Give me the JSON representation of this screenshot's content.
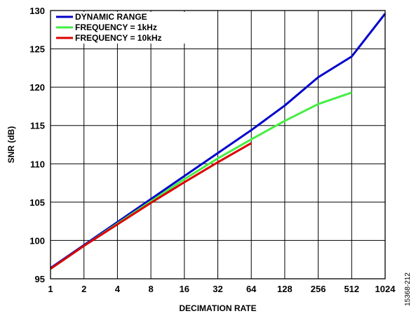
{
  "chart_data": {
    "type": "line",
    "xlabel": "DECIMATION RATE",
    "ylabel": "SNR (dB)",
    "x_scale": "log2",
    "x_ticks": [
      1,
      2,
      4,
      8,
      16,
      32,
      64,
      128,
      256,
      512,
      1024
    ],
    "x_tick_labels": [
      "1",
      "2",
      "4",
      "8",
      "16",
      "32",
      "64",
      "128",
      "256",
      "512",
      "1024"
    ],
    "ylim": [
      95,
      130
    ],
    "y_ticks": [
      95,
      100,
      105,
      110,
      115,
      120,
      125,
      130
    ],
    "y_tick_labels": [
      "95",
      "100",
      "105",
      "110",
      "115",
      "120",
      "125",
      "130"
    ],
    "grid": true,
    "legend_position": "top-left",
    "series": [
      {
        "name": "DYNAMIC RANGE",
        "color": "#0000cc",
        "x": [
          1,
          2,
          4,
          8,
          16,
          32,
          64,
          128,
          256,
          512,
          1024
        ],
        "y": [
          96.4,
          99.4,
          102.4,
          105.4,
          108.4,
          111.4,
          114.4,
          117.6,
          121.3,
          124.0,
          129.6
        ]
      },
      {
        "name": "FREQUENCY = 1kHz",
        "color": "#44ee44",
        "x": [
          1,
          2,
          4,
          8,
          16,
          32,
          64,
          128,
          256,
          512
        ],
        "y": [
          96.3,
          99.3,
          102.2,
          105.1,
          108.0,
          110.7,
          113.2,
          115.6,
          117.8,
          119.3
        ]
      },
      {
        "name": "FREQUENCY = 10kHz",
        "color": "#dd0000",
        "x": [
          1,
          2,
          4,
          8,
          16,
          32,
          64
        ],
        "y": [
          96.3,
          99.3,
          102.1,
          104.9,
          107.6,
          110.2,
          112.7
        ]
      }
    ]
  },
  "figure_id": "15368-212"
}
